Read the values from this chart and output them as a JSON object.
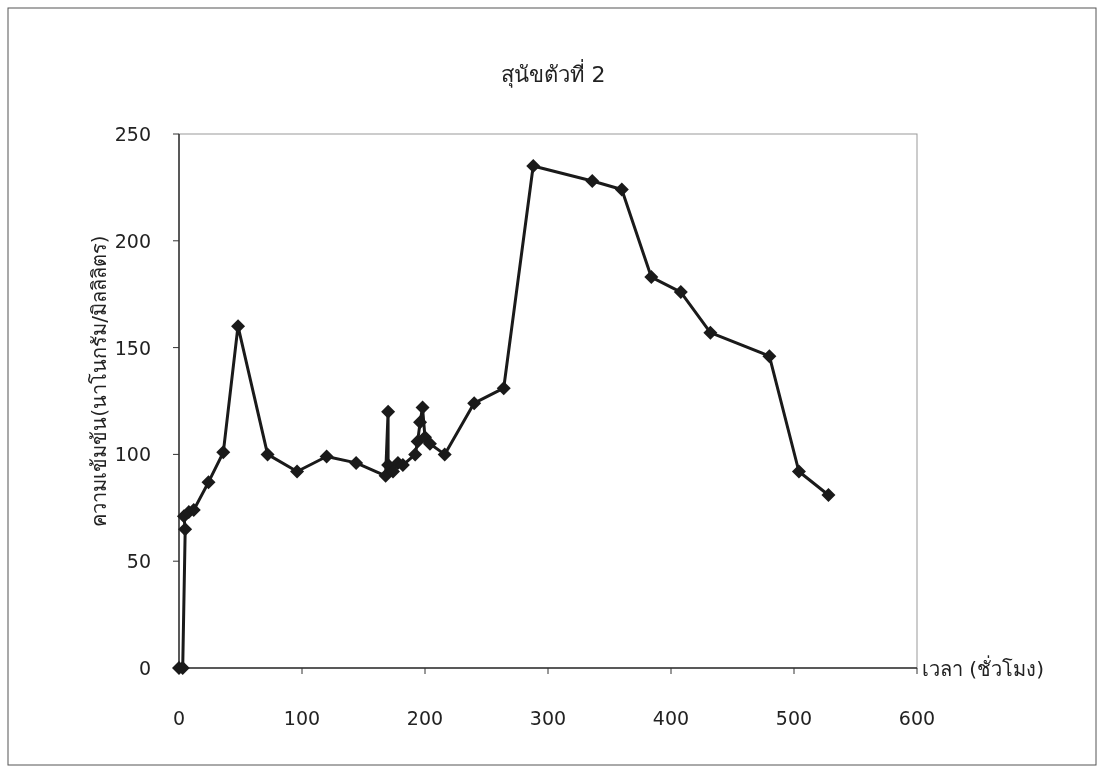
{
  "chart_data": {
    "type": "line",
    "title": "สุนัขตัวที่ 2",
    "xlabel": "เวลา (ชั่วโมง)",
    "ylabel": "ความเข้มข้น(นาโนกรัม/มิลลิลิตร)",
    "x": [
      0,
      3,
      5,
      4,
      8,
      12,
      24,
      36,
      48,
      72,
      96,
      120,
      144,
      168,
      170,
      170,
      174,
      178,
      182,
      192,
      194,
      196,
      198,
      200,
      204,
      216,
      240,
      264,
      288,
      336,
      360,
      384,
      408,
      432,
      480,
      504,
      528
    ],
    "series": [
      {
        "color": "#1a1a1a",
        "values": [
          0,
          0,
          65,
          71,
          73,
          74,
          87,
          101,
          160,
          100,
          92,
          99,
          96,
          90,
          120,
          95,
          92,
          96,
          95,
          100,
          106,
          115,
          122,
          108,
          105,
          100,
          124,
          131,
          235,
          228,
          224,
          183,
          176,
          157,
          146,
          92,
          81
        ]
      }
    ],
    "marker": "diamond",
    "xlim": [
      0,
      600
    ],
    "ylim": [
      0,
      250
    ],
    "xticks": [
      0,
      100,
      200,
      300,
      400,
      500,
      600
    ],
    "yticks": [
      0,
      50,
      100,
      150,
      200,
      250
    ]
  }
}
